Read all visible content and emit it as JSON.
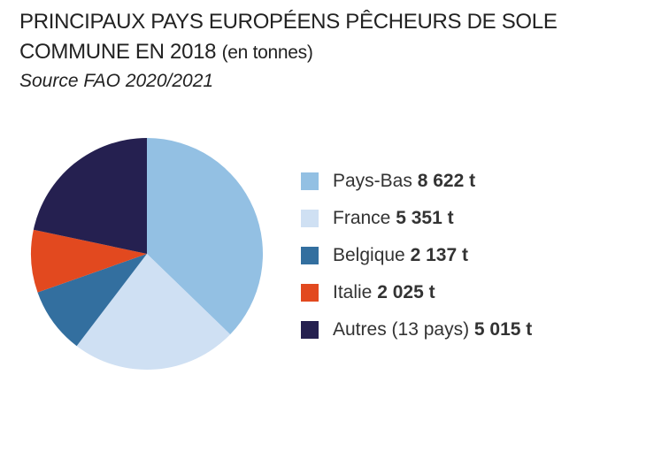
{
  "chart_data": {
    "type": "pie",
    "title": "PRINCIPAUX PAYS EUROPÉENS PÊCHEURS DE SOLE COMMUNE EN 2018",
    "unit": "(en tonnes)",
    "subtitle": "Source FAO 2020/2021",
    "categories": [
      "Pays-Bas",
      "France",
      "Belgique",
      "Italie",
      "Autres (13 pays)"
    ],
    "values": [
      8622,
      5351,
      2137,
      2025,
      5015
    ],
    "value_labels": [
      "8 622 t",
      "5 351 t",
      "2 137 t",
      "2 025 t",
      "5 015 t"
    ],
    "colors": [
      "#93c0e3",
      "#cfe0f3",
      "#336f9f",
      "#e2491f",
      "#252050"
    ],
    "legend": "right"
  }
}
